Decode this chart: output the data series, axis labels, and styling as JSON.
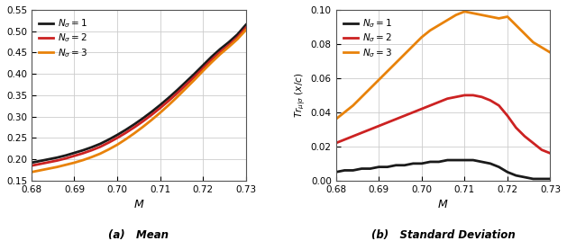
{
  "x": [
    0.68,
    0.682,
    0.684,
    0.686,
    0.688,
    0.69,
    0.692,
    0.694,
    0.696,
    0.698,
    0.7,
    0.702,
    0.704,
    0.706,
    0.708,
    0.71,
    0.712,
    0.714,
    0.716,
    0.718,
    0.72,
    0.722,
    0.724,
    0.726,
    0.728,
    0.73
  ],
  "mean_n1": [
    0.192,
    0.196,
    0.2,
    0.204,
    0.209,
    0.215,
    0.221,
    0.228,
    0.236,
    0.246,
    0.257,
    0.269,
    0.282,
    0.296,
    0.311,
    0.327,
    0.344,
    0.362,
    0.381,
    0.4,
    0.42,
    0.44,
    0.458,
    0.474,
    0.492,
    0.515
  ],
  "mean_n2": [
    0.185,
    0.189,
    0.193,
    0.197,
    0.202,
    0.208,
    0.214,
    0.221,
    0.229,
    0.239,
    0.25,
    0.262,
    0.275,
    0.289,
    0.304,
    0.32,
    0.337,
    0.355,
    0.374,
    0.393,
    0.413,
    0.433,
    0.451,
    0.467,
    0.485,
    0.508
  ],
  "mean_n3": [
    0.17,
    0.174,
    0.178,
    0.182,
    0.187,
    0.192,
    0.198,
    0.205,
    0.213,
    0.223,
    0.234,
    0.247,
    0.261,
    0.276,
    0.292,
    0.309,
    0.327,
    0.346,
    0.366,
    0.386,
    0.407,
    0.427,
    0.446,
    0.463,
    0.481,
    0.503
  ],
  "std_n1": [
    0.005,
    0.006,
    0.006,
    0.007,
    0.007,
    0.008,
    0.008,
    0.009,
    0.009,
    0.01,
    0.01,
    0.011,
    0.011,
    0.012,
    0.012,
    0.012,
    0.012,
    0.011,
    0.01,
    0.008,
    0.005,
    0.003,
    0.002,
    0.001,
    0.001,
    0.001
  ],
  "std_n2": [
    0.022,
    0.024,
    0.026,
    0.028,
    0.03,
    0.032,
    0.034,
    0.036,
    0.038,
    0.04,
    0.042,
    0.044,
    0.046,
    0.048,
    0.049,
    0.05,
    0.05,
    0.049,
    0.047,
    0.044,
    0.038,
    0.031,
    0.026,
    0.022,
    0.018,
    0.016
  ],
  "std_n3": [
    0.036,
    0.04,
    0.044,
    0.049,
    0.054,
    0.059,
    0.064,
    0.069,
    0.074,
    0.079,
    0.084,
    0.088,
    0.091,
    0.094,
    0.097,
    0.099,
    0.098,
    0.097,
    0.096,
    0.095,
    0.096,
    0.091,
    0.086,
    0.081,
    0.078,
    0.075
  ],
  "colors": [
    "#1a1a1a",
    "#cc2222",
    "#e8820a"
  ],
  "labels": [
    "$N_\\sigma = 1$",
    "$N_\\sigma = 2$",
    "$N_\\sigma = 3$"
  ],
  "xlabel": "$M$",
  "ylabel_left": "",
  "ylabel_right": "$Tr_{\\mu|\\sigma}\\ (x/c)$",
  "xlim": [
    0.68,
    0.73
  ],
  "ylim_left": [
    0.15,
    0.55
  ],
  "ylim_right": [
    0.0,
    0.1
  ],
  "xticks": [
    0.68,
    0.69,
    0.7,
    0.71,
    0.72,
    0.73
  ],
  "yticks_left": [
    0.15,
    0.2,
    0.25,
    0.3,
    0.35,
    0.4,
    0.45,
    0.5,
    0.55
  ],
  "yticks_right": [
    0.0,
    0.02,
    0.04,
    0.06,
    0.08,
    0.1
  ],
  "caption_left": "(a)   Mean",
  "caption_right": "(b)   Standard Deviation",
  "linewidth": 2.0,
  "bg_color": "#ffffff",
  "grid_color": "#cccccc"
}
